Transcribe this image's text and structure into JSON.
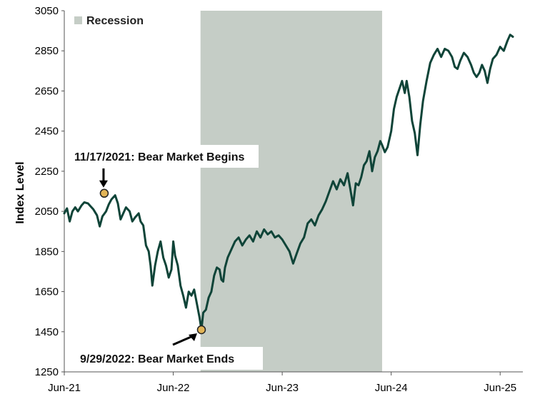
{
  "chart_data": {
    "type": "line",
    "ylabel": "Index Level",
    "xlabel": "",
    "ylim": [
      1250,
      3050
    ],
    "yticks": [
      1250,
      1450,
      1650,
      1850,
      2050,
      2250,
      2450,
      2650,
      2850,
      3050
    ],
    "xticks": [
      "Jun-21",
      "Jun-22",
      "Jun-23",
      "Jun-24",
      "Jun-25"
    ],
    "xrange_months": [
      0,
      50.5
    ],
    "grid": false,
    "legend": {
      "position": "top-left",
      "entries": [
        "Recession"
      ]
    },
    "colors": {
      "line": "#0f4438",
      "recession": "#c5cdc6",
      "marker": "#e2b457"
    },
    "recession": {
      "start_month": 15.0,
      "end_month": 35.0
    },
    "series": [
      {
        "values": [
          [
            0.0,
            2040
          ],
          [
            0.3,
            2065
          ],
          [
            0.6,
            2000
          ],
          [
            0.9,
            2050
          ],
          [
            1.2,
            2070
          ],
          [
            1.5,
            2050
          ],
          [
            1.9,
            2080
          ],
          [
            2.2,
            2095
          ],
          [
            2.6,
            2090
          ],
          [
            2.9,
            2075
          ],
          [
            3.2,
            2060
          ],
          [
            3.6,
            2030
          ],
          [
            3.9,
            1975
          ],
          [
            4.2,
            2025
          ],
          [
            4.6,
            2050
          ],
          [
            4.9,
            2085
          ],
          [
            5.2,
            2110
          ],
          [
            5.6,
            2130
          ],
          [
            5.9,
            2090
          ],
          [
            6.2,
            2010
          ],
          [
            6.5,
            2040
          ],
          [
            6.8,
            2070
          ],
          [
            7.2,
            2050
          ],
          [
            7.5,
            2000
          ],
          [
            7.8,
            2020
          ],
          [
            8.2,
            2040
          ],
          [
            8.4,
            2000
          ],
          [
            8.7,
            1980
          ],
          [
            9.0,
            1880
          ],
          [
            9.3,
            1850
          ],
          [
            9.5,
            1780
          ],
          [
            9.7,
            1680
          ],
          [
            10.0,
            1780
          ],
          [
            10.3,
            1850
          ],
          [
            10.6,
            1900
          ],
          [
            10.9,
            1820
          ],
          [
            11.2,
            1780
          ],
          [
            11.5,
            1720
          ],
          [
            11.8,
            1760
          ],
          [
            12.0,
            1900
          ],
          [
            12.2,
            1830
          ],
          [
            12.5,
            1780
          ],
          [
            12.8,
            1680
          ],
          [
            13.1,
            1630
          ],
          [
            13.4,
            1570
          ],
          [
            13.7,
            1650
          ],
          [
            14.0,
            1630
          ],
          [
            14.3,
            1660
          ],
          [
            14.6,
            1590
          ],
          [
            14.9,
            1520
          ],
          [
            15.1,
            1460
          ],
          [
            15.3,
            1545
          ],
          [
            15.6,
            1560
          ],
          [
            15.9,
            1620
          ],
          [
            16.2,
            1650
          ],
          [
            16.5,
            1730
          ],
          [
            16.8,
            1770
          ],
          [
            17.1,
            1760
          ],
          [
            17.3,
            1710
          ],
          [
            17.5,
            1700
          ],
          [
            17.7,
            1770
          ],
          [
            18.0,
            1820
          ],
          [
            18.4,
            1860
          ],
          [
            18.8,
            1900
          ],
          [
            19.2,
            1920
          ],
          [
            19.6,
            1880
          ],
          [
            20.0,
            1910
          ],
          [
            20.4,
            1930
          ],
          [
            20.8,
            1900
          ],
          [
            21.2,
            1950
          ],
          [
            21.6,
            1920
          ],
          [
            22.0,
            1960
          ],
          [
            22.4,
            1935
          ],
          [
            22.8,
            1950
          ],
          [
            23.2,
            1920
          ],
          [
            23.6,
            1930
          ],
          [
            24.0,
            1910
          ],
          [
            24.4,
            1880
          ],
          [
            24.8,
            1850
          ],
          [
            25.2,
            1790
          ],
          [
            25.6,
            1840
          ],
          [
            26.0,
            1890
          ],
          [
            26.4,
            1920
          ],
          [
            26.8,
            1990
          ],
          [
            27.2,
            2010
          ],
          [
            27.6,
            1980
          ],
          [
            28.0,
            2030
          ],
          [
            28.4,
            2060
          ],
          [
            28.8,
            2100
          ],
          [
            29.2,
            2150
          ],
          [
            29.6,
            2200
          ],
          [
            30.0,
            2160
          ],
          [
            30.4,
            2210
          ],
          [
            30.8,
            2180
          ],
          [
            31.2,
            2240
          ],
          [
            31.5,
            2160
          ],
          [
            31.8,
            2080
          ],
          [
            32.1,
            2190
          ],
          [
            32.4,
            2180
          ],
          [
            32.7,
            2220
          ],
          [
            33.0,
            2280
          ],
          [
            33.3,
            2300
          ],
          [
            33.6,
            2350
          ],
          [
            33.9,
            2250
          ],
          [
            34.2,
            2320
          ],
          [
            34.5,
            2350
          ],
          [
            34.8,
            2400
          ],
          [
            35.0,
            2380
          ],
          [
            35.3,
            2345
          ],
          [
            35.6,
            2370
          ],
          [
            36.0,
            2450
          ],
          [
            36.3,
            2560
          ],
          [
            36.6,
            2620
          ],
          [
            36.9,
            2660
          ],
          [
            37.2,
            2700
          ],
          [
            37.5,
            2640
          ],
          [
            37.7,
            2700
          ],
          [
            38.0,
            2620
          ],
          [
            38.3,
            2500
          ],
          [
            38.6,
            2440
          ],
          [
            38.9,
            2330
          ],
          [
            39.2,
            2480
          ],
          [
            39.5,
            2600
          ],
          [
            39.9,
            2700
          ],
          [
            40.3,
            2790
          ],
          [
            40.7,
            2830
          ],
          [
            41.1,
            2860
          ],
          [
            41.5,
            2820
          ],
          [
            41.9,
            2860
          ],
          [
            42.3,
            2850
          ],
          [
            42.7,
            2820
          ],
          [
            43.0,
            2770
          ],
          [
            43.3,
            2760
          ],
          [
            43.6,
            2800
          ],
          [
            44.0,
            2840
          ],
          [
            44.4,
            2820
          ],
          [
            44.8,
            2780
          ],
          [
            45.1,
            2740
          ],
          [
            45.4,
            2720
          ],
          [
            45.7,
            2740
          ],
          [
            46.0,
            2780
          ],
          [
            46.3,
            2750
          ],
          [
            46.6,
            2690
          ],
          [
            46.9,
            2760
          ],
          [
            47.2,
            2810
          ],
          [
            47.6,
            2830
          ],
          [
            48.0,
            2870
          ],
          [
            48.4,
            2850
          ],
          [
            48.8,
            2900
          ],
          [
            49.1,
            2930
          ],
          [
            49.4,
            2920
          ]
        ]
      }
    ],
    "annotations": [
      {
        "month": 4.4,
        "value": 2140,
        "label_date": "11/17/2021",
        "label_text": ": Bear Market Begins"
      },
      {
        "month": 15.1,
        "value": 1460,
        "label_date": "9/29/2022",
        "label_text": ": Bear Market Ends"
      }
    ]
  }
}
